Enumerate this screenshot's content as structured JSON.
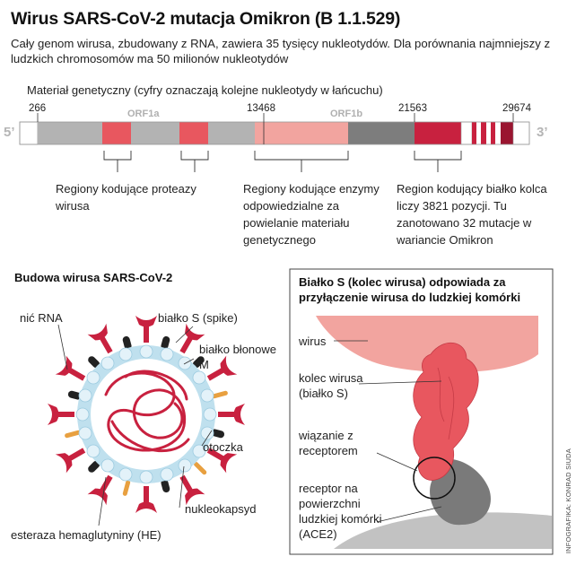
{
  "title": "Wirus SARS-CoV-2 mutacja Omikron (B 1.1.529)",
  "subtitle": "Cały genom wirusa, zbudowany z RNA, zawiera 35 tysięcy nukleotydów. Dla porównania najmniejszy z ludzkich chromosomów ma 50 milionów nukleotydów",
  "genome": {
    "label": "Materiał genetyczny (cyfry oznaczają kolejne nukleotydy w łańcuchu)",
    "end_left": "5’",
    "end_right": "3’",
    "positions": [
      "266",
      "13468",
      "21563",
      "29674"
    ],
    "orf1a": "ORF1a",
    "orf1b": "ORF1b",
    "notes": [
      "Regiony kodujące proteazy wirusa",
      "Regiony kodujące enzymy odpowiedzialne za powielanie materiału genetycznego",
      "Region kodujący białko kolca liczy 3821 pozycji. Tu zanotowano 32 mutacje w wariancie Omikron"
    ]
  },
  "structure": {
    "title": "Budowa wirusa SARS-CoV-2",
    "labels": {
      "rna": "nić RNA",
      "spike": "białko S (spike)",
      "membrane": "białko błonowe M",
      "envelope": "otoczka",
      "nucleocapsid": "nukleokapsyd",
      "he": "esteraza hemaglutyniny (HE)"
    }
  },
  "binding": {
    "title": "Białko S (kolec wirusa) odpowiada za przyłączenie wirusa do ludzkiej komórki",
    "labels": {
      "virus": "wirus",
      "spike": "kolec wirusa (białko S)",
      "binding": "wiązanie z receptorem",
      "receptor": "receptor na powierzchni ludzkiej komórki (ACE2)"
    }
  },
  "credit": "INFOGRAFIKA: KONRAD SIUDA",
  "colors": {
    "spike_red": "#c8213f",
    "spike_pink": "#e8575f",
    "light_pink": "#f2a49f",
    "grey": "#b3b3b3",
    "dark_grey": "#7d7d7d",
    "membrane_black": "#222222",
    "envelope_blue": "#bfe0ee",
    "he_orange": "#e8a040"
  }
}
